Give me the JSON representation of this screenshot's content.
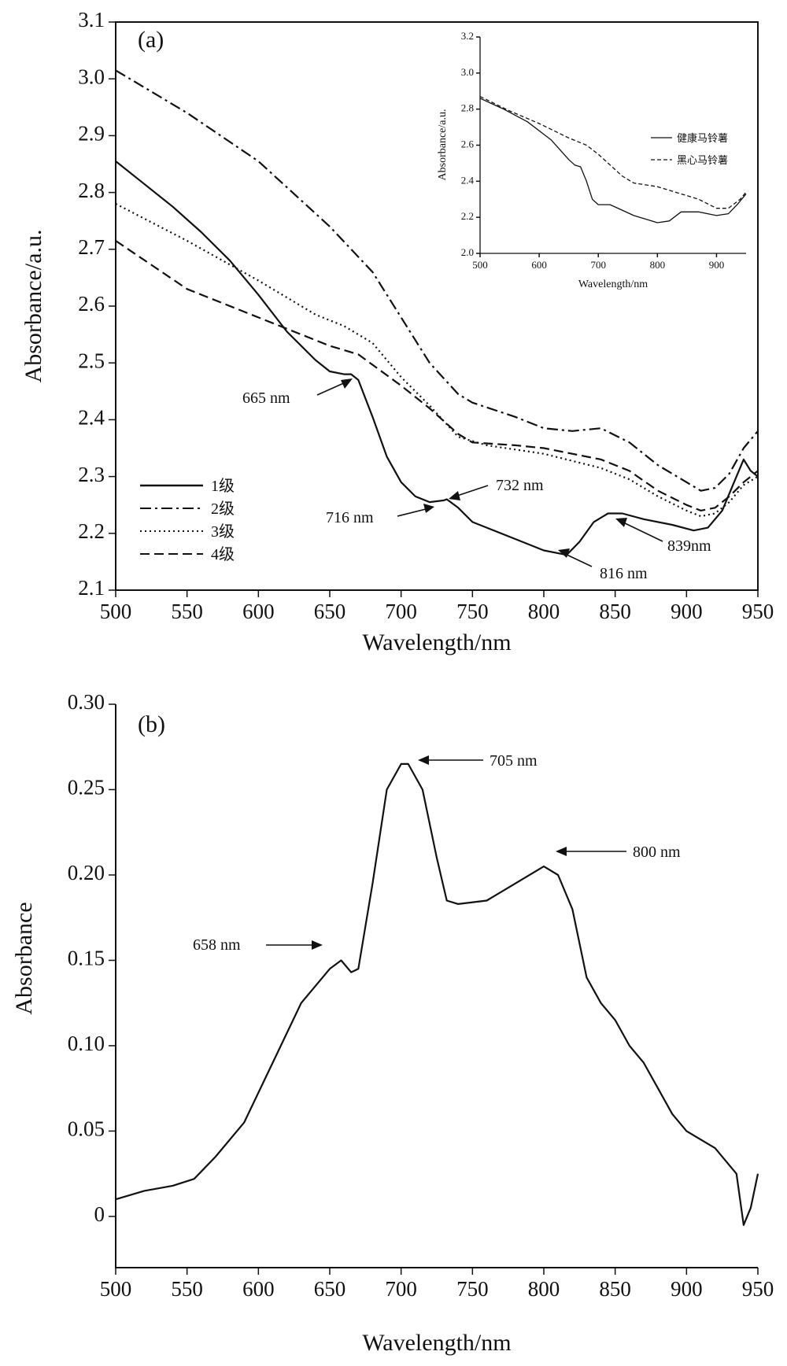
{
  "chart_data": [
    {
      "panel": "(a)",
      "type": "line",
      "xlabel": "Wavelength/nm",
      "ylabel": "Absorbance/a.u.",
      "xlim": [
        500,
        950
      ],
      "ylim": [
        2.1,
        3.1
      ],
      "xticks": [
        "500",
        "550",
        "600",
        "650",
        "700",
        "750",
        "800",
        "850",
        "900",
        "950"
      ],
      "yticks": [
        "2.1",
        "2.2",
        "2.3",
        "2.4",
        "2.5",
        "2.6",
        "2.7",
        "2.8",
        "2.9",
        "3.0",
        "3.1"
      ],
      "legend_position": "bottom-left",
      "series": [
        {
          "name": "1级",
          "style": "solid",
          "x": [
            500,
            520,
            540,
            560,
            580,
            600,
            620,
            640,
            650,
            660,
            665,
            670,
            680,
            690,
            700,
            710,
            720,
            730,
            732,
            740,
            750,
            760,
            780,
            800,
            816,
            825,
            835,
            845,
            855,
            870,
            890,
            905,
            915,
            925,
            935,
            940,
            945,
            950
          ],
          "y": [
            2.855,
            2.815,
            2.775,
            2.73,
            2.68,
            2.62,
            2.555,
            2.505,
            2.485,
            2.48,
            2.48,
            2.47,
            2.405,
            2.335,
            2.29,
            2.265,
            2.255,
            2.258,
            2.26,
            2.245,
            2.22,
            2.21,
            2.19,
            2.17,
            2.162,
            2.185,
            2.22,
            2.235,
            2.235,
            2.225,
            2.215,
            2.205,
            2.21,
            2.24,
            2.3,
            2.33,
            2.31,
            2.3
          ]
        },
        {
          "name": "2级",
          "style": "dashdot",
          "x": [
            500,
            550,
            600,
            650,
            680,
            700,
            720,
            740,
            750,
            780,
            800,
            820,
            840,
            860,
            880,
            900,
            910,
            920,
            930,
            940,
            950
          ],
          "y": [
            3.015,
            2.94,
            2.855,
            2.74,
            2.66,
            2.58,
            2.5,
            2.445,
            2.43,
            2.405,
            2.385,
            2.38,
            2.385,
            2.36,
            2.32,
            2.29,
            2.275,
            2.28,
            2.305,
            2.35,
            2.38
          ]
        },
        {
          "name": "3级",
          "style": "dotted",
          "x": [
            500,
            550,
            600,
            640,
            660,
            680,
            700,
            720,
            740,
            760,
            800,
            840,
            860,
            880,
            900,
            910,
            920,
            930,
            940,
            950
          ],
          "y": [
            2.78,
            2.715,
            2.645,
            2.585,
            2.565,
            2.535,
            2.475,
            2.425,
            2.37,
            2.355,
            2.34,
            2.315,
            2.295,
            2.265,
            2.24,
            2.23,
            2.235,
            2.255,
            2.285,
            2.3
          ]
        },
        {
          "name": "4级",
          "style": "dashed",
          "x": [
            500,
            550,
            600,
            650,
            670,
            700,
            720,
            740,
            750,
            780,
            800,
            840,
            860,
            880,
            900,
            910,
            920,
            930,
            940,
            950
          ],
          "y": [
            2.715,
            2.63,
            2.58,
            2.53,
            2.515,
            2.46,
            2.42,
            2.375,
            2.36,
            2.355,
            2.35,
            2.33,
            2.31,
            2.275,
            2.25,
            2.24,
            2.245,
            2.265,
            2.29,
            2.31
          ]
        }
      ],
      "annotations": [
        {
          "text": "665 nm",
          "x": 665,
          "y": 2.48
        },
        {
          "text": "716 nm",
          "x": 716,
          "y": 2.25
        },
        {
          "text": "732 nm",
          "x": 732,
          "y": 2.26
        },
        {
          "text": "816 nm",
          "x": 816,
          "y": 2.163
        },
        {
          "text": "839nm",
          "x": 852,
          "y": 2.232
        }
      ],
      "inset": {
        "type": "line",
        "xlabel": "Wavelength/nm",
        "ylabel": "Absorbance/a.u.",
        "xlim": [
          500,
          950
        ],
        "ylim": [
          2.0,
          3.2
        ],
        "xticks": [
          "500",
          "600",
          "700",
          "800",
          "900"
        ],
        "yticks": [
          "2.0",
          "2.2",
          "2.4",
          "2.6",
          "2.8",
          "3.0",
          "3.2"
        ],
        "legend_position": "right",
        "series": [
          {
            "name": "健康马铃薯",
            "style": "solid",
            "x": [
              500,
              540,
              580,
              620,
              650,
              660,
              670,
              680,
              690,
              700,
              720,
              740,
              760,
              800,
              820,
              840,
              870,
              900,
              920,
              935,
              950
            ],
            "y": [
              2.86,
              2.8,
              2.73,
              2.63,
              2.52,
              2.49,
              2.48,
              2.4,
              2.3,
              2.27,
              2.27,
              2.24,
              2.21,
              2.17,
              2.18,
              2.23,
              2.23,
              2.21,
              2.22,
              2.27,
              2.33
            ]
          },
          {
            "name": "黑心马铃薯",
            "style": "dashed",
            "x": [
              500,
              550,
              600,
              650,
              680,
              700,
              720,
              740,
              760,
              800,
              840,
              870,
              900,
              920,
              940,
              950
            ],
            "y": [
              2.87,
              2.79,
              2.72,
              2.64,
              2.6,
              2.55,
              2.49,
              2.43,
              2.39,
              2.37,
              2.33,
              2.3,
              2.25,
              2.25,
              2.3,
              2.34
            ]
          }
        ]
      }
    },
    {
      "panel": "(b)",
      "type": "line",
      "xlabel": "Wavelength/nm",
      "ylabel": "Absorbance",
      "xlim": [
        500,
        950
      ],
      "ylim": [
        -0.03,
        0.3
      ],
      "xticks": [
        "500",
        "550",
        "600",
        "650",
        "700",
        "750",
        "800",
        "850",
        "900",
        "950"
      ],
      "yticks": [
        "0",
        "0.05",
        "0.10",
        "0.15",
        "0.20",
        "0.25",
        "0.30"
      ],
      "series": [
        {
          "name": "",
          "style": "solid",
          "x": [
            500,
            520,
            540,
            555,
            570,
            590,
            610,
            630,
            650,
            658,
            665,
            670,
            680,
            690,
            700,
            705,
            715,
            725,
            732,
            740,
            760,
            780,
            800,
            810,
            820,
            830,
            840,
            850,
            860,
            870,
            880,
            890,
            900,
            910,
            920,
            930,
            935,
            940,
            945,
            950
          ],
          "y": [
            0.01,
            0.015,
            0.018,
            0.022,
            0.035,
            0.055,
            0.09,
            0.125,
            0.145,
            0.15,
            0.143,
            0.145,
            0.195,
            0.25,
            0.265,
            0.265,
            0.25,
            0.21,
            0.185,
            0.183,
            0.185,
            0.195,
            0.205,
            0.2,
            0.18,
            0.14,
            0.125,
            0.115,
            0.1,
            0.09,
            0.075,
            0.06,
            0.05,
            0.045,
            0.04,
            0.03,
            0.025,
            -0.005,
            0.005,
            0.025
          ]
        }
      ],
      "annotations": [
        {
          "text": "658 nm",
          "x": 658,
          "y": 0.15
        },
        {
          "text": "705 nm",
          "x": 705,
          "y": 0.266
        },
        {
          "text": "800 nm",
          "x": 800,
          "y": 0.205
        }
      ]
    }
  ]
}
